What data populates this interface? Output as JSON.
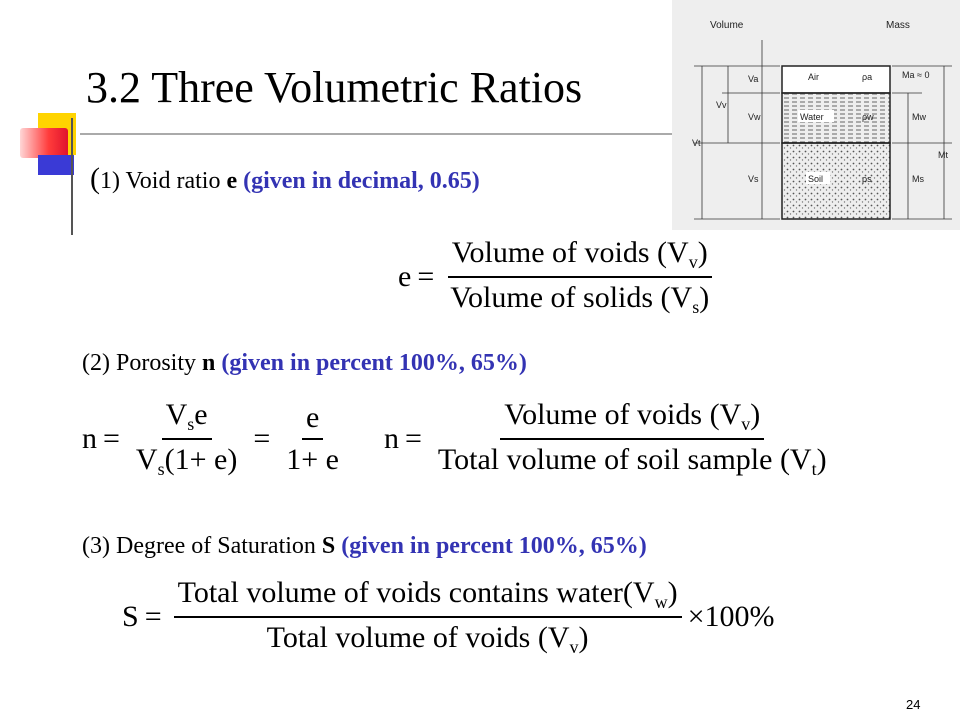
{
  "slide": {
    "title": "3.2 Three Volumetric Ratios",
    "page_number": "24"
  },
  "section1": {
    "paren": "(",
    "label": "1) Void ratio ",
    "symbol": "e",
    "note": "(given in decimal, 0.65)",
    "equation": {
      "lhs": "e",
      "eq": "=",
      "numerator": "Volume of  voids",
      "num_sym": "(V",
      "num_sub": "v",
      "num_close": ")",
      "denominator": "Volume of  solids",
      "den_sym": "(V",
      "den_sub": "s",
      "den_close": ")"
    }
  },
  "section2": {
    "label": "(2) Porosity ",
    "symbol": "n",
    "note": "(given in percent 100%, 65%)",
    "equation_a": {
      "lhs": "n",
      "eq1": "=",
      "num1": "V",
      "num1_sub": "s",
      "num1_rest": "e",
      "den1": "V",
      "den1_sub": "s",
      "den1_rest": "(1+ e)",
      "eq2": "=",
      "num2": "e",
      "den2": "1+ e"
    },
    "equation_b": {
      "lhs": "n",
      "eq": "=",
      "numerator": "Volume of  voids",
      "num_sym": "(V",
      "num_sub": "v",
      "num_close": ")",
      "denominator": "Total volume of  soil sample",
      "den_sym": "(V",
      "den_sub": "t",
      "den_close": ")"
    }
  },
  "section3": {
    "label": "(3) Degree of Saturation ",
    "symbol": "S",
    "note": "(given in percent 100%, 65%)",
    "equation": {
      "lhs": "S",
      "eq": "=",
      "numerator": "Total volume of  voids contains  water",
      "num_sym": "(V",
      "num_sub": "w",
      "num_close": ")",
      "denominator": "Total volume of  voids",
      "den_sym": "(V",
      "den_sub": "v",
      "den_close": ")",
      "multiplier": "×100%"
    }
  },
  "diagram": {
    "header_volume": "Volume",
    "header_mass": "Mass",
    "phase_air": "Air",
    "phase_water": "Water",
    "phase_soil": "Soil",
    "rho_a": "ρa",
    "rho_w": "ρw",
    "rho_s": "ρs",
    "va": "Va",
    "vw": "Vw",
    "vs": "Vs",
    "vv": "Vv",
    "vt": "Vt",
    "ma": "Ma ≈ 0",
    "mw": "Mw",
    "ms": "Ms",
    "mt": "Mt"
  }
}
